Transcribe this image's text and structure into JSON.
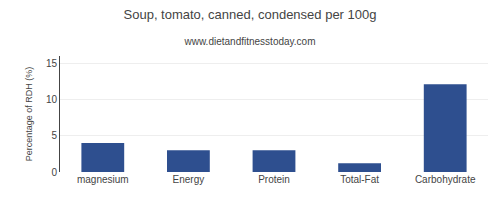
{
  "chart_data": {
    "type": "bar",
    "title": "Soup, tomato, canned, condensed per 100g",
    "subtitle": "www.dietandfitnesstoday.com",
    "ylabel": "Percentage of RDH (%)",
    "categories": [
      "magnesium",
      "Energy",
      "Protein",
      "Total-Fat",
      "Carbohydrate"
    ],
    "values": [
      4.0,
      3.0,
      3.0,
      1.2,
      12.1
    ],
    "color": "#2e4f8f",
    "ylim": [
      0,
      16
    ],
    "yticks": [
      0,
      5,
      10,
      15
    ],
    "grid": true
  }
}
